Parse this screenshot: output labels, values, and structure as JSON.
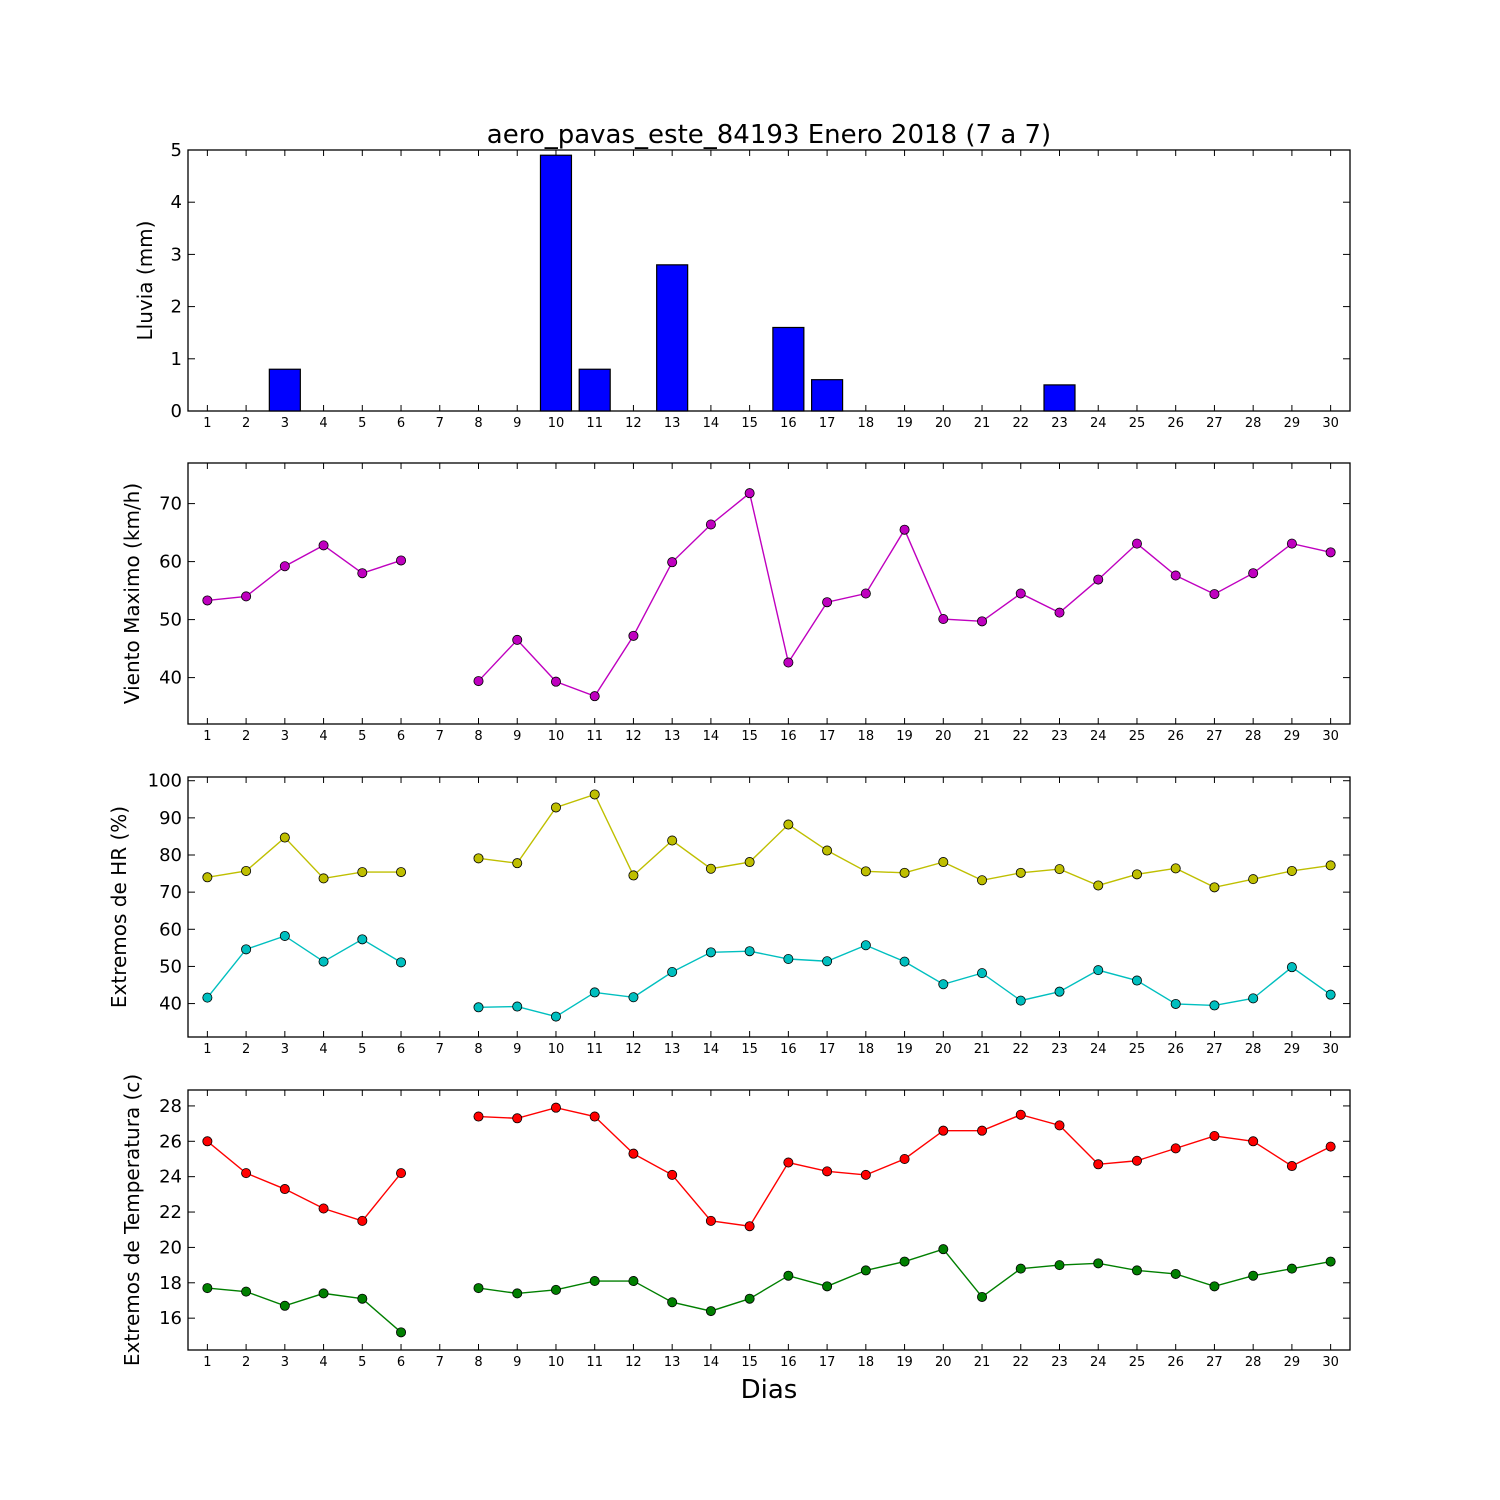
{
  "title": "aero_pavas_este_84193 Enero 2018  (7 a 7)",
  "xlabel": "Dias",
  "chart_data": [
    {
      "type": "bar",
      "ylabel": "Lluvia (mm)",
      "x": [
        1,
        2,
        3,
        4,
        5,
        6,
        7,
        8,
        9,
        10,
        11,
        12,
        13,
        14,
        15,
        16,
        17,
        18,
        19,
        20,
        21,
        22,
        23,
        24,
        25,
        26,
        27,
        28,
        29,
        30
      ],
      "ylim": [
        0,
        5
      ],
      "yticks": [
        0,
        1,
        2,
        3,
        4,
        5
      ],
      "series": [
        {
          "color": "#0000ff",
          "values": [
            0,
            0,
            0.8,
            0,
            0,
            0,
            null,
            0,
            0,
            4.9,
            0.8,
            0,
            2.8,
            0,
            0,
            1.6,
            0.6,
            0,
            0,
            0,
            0,
            0,
            0.5,
            0,
            0,
            0,
            0,
            0,
            0,
            0
          ]
        }
      ]
    },
    {
      "type": "line",
      "ylabel": "Viento Maximo (km/h)",
      "x": [
        1,
        2,
        3,
        4,
        5,
        6,
        7,
        8,
        9,
        10,
        11,
        12,
        13,
        14,
        15,
        16,
        17,
        18,
        19,
        20,
        21,
        22,
        23,
        24,
        25,
        26,
        27,
        28,
        29,
        30
      ],
      "ylim": [
        32,
        77
      ],
      "yticks": [
        40,
        50,
        60,
        70
      ],
      "series": [
        {
          "color": "#bf00bf",
          "values": [
            53.3,
            54,
            59.2,
            62.8,
            58,
            60.2,
            null,
            39.4,
            46.5,
            39.3,
            36.8,
            47.2,
            59.9,
            66.4,
            71.8,
            42.6,
            53,
            54.5,
            65.5,
            50.1,
            49.7,
            54.5,
            51.2,
            56.9,
            63.1,
            57.6,
            54.4,
            58,
            63.1,
            61.6
          ]
        }
      ]
    },
    {
      "type": "line",
      "ylabel": "Extremos de HR (%)",
      "x": [
        1,
        2,
        3,
        4,
        5,
        6,
        7,
        8,
        9,
        10,
        11,
        12,
        13,
        14,
        15,
        16,
        17,
        18,
        19,
        20,
        21,
        22,
        23,
        24,
        25,
        26,
        27,
        28,
        29,
        30
      ],
      "ylim": [
        31,
        101
      ],
      "yticks": [
        40,
        50,
        60,
        70,
        80,
        90,
        100
      ],
      "series": [
        {
          "color": "#bfbf00",
          "values": [
            74,
            75.7,
            84.7,
            73.7,
            75.4,
            75.4,
            null,
            79.1,
            77.8,
            92.8,
            96.3,
            74.5,
            83.9,
            76.3,
            78.1,
            88.2,
            81.2,
            75.6,
            75.2,
            78.1,
            73.2,
            75.2,
            76.2,
            71.8,
            74.8,
            76.4,
            71.3,
            73.5,
            75.7,
            77.2
          ]
        },
        {
          "color": "#00bfbf",
          "values": [
            41.6,
            54.6,
            58.2,
            51.3,
            57.3,
            51.1,
            null,
            39,
            39.2,
            36.5,
            43,
            41.7,
            48.5,
            53.8,
            54.1,
            52,
            51.4,
            55.7,
            51.3,
            45.2,
            48.2,
            40.8,
            43.2,
            49,
            46.2,
            39.9,
            39.5,
            41.4,
            49.8,
            42.4
          ]
        }
      ]
    },
    {
      "type": "line",
      "ylabel": "Extremos de Temperatura (c)",
      "x": [
        1,
        2,
        3,
        4,
        5,
        6,
        7,
        8,
        9,
        10,
        11,
        12,
        13,
        14,
        15,
        16,
        17,
        18,
        19,
        20,
        21,
        22,
        23,
        24,
        25,
        26,
        27,
        28,
        29,
        30
      ],
      "ylim": [
        14.2,
        28.9
      ],
      "yticks": [
        16,
        18,
        20,
        22,
        24,
        26,
        28
      ],
      "series": [
        {
          "color": "#ff0000",
          "values": [
            26,
            24.2,
            23.3,
            22.2,
            21.5,
            24.2,
            null,
            27.4,
            27.3,
            27.9,
            27.4,
            25.3,
            24.1,
            21.5,
            21.2,
            24.8,
            24.3,
            24.1,
            25,
            26.6,
            26.6,
            27.5,
            26.9,
            24.7,
            24.9,
            25.6,
            26.3,
            26,
            24.6,
            25.7
          ]
        },
        {
          "color": "#007f00",
          "values": [
            17.7,
            17.5,
            16.7,
            17.4,
            17.1,
            15.2,
            null,
            17.7,
            17.4,
            17.6,
            18.1,
            18.1,
            16.9,
            16.4,
            17.1,
            18.4,
            17.8,
            18.7,
            19.2,
            19.9,
            17.2,
            18.8,
            19,
            19.1,
            18.7,
            18.5,
            17.8,
            18.4,
            18.8,
            19.2
          ]
        }
      ]
    }
  ]
}
